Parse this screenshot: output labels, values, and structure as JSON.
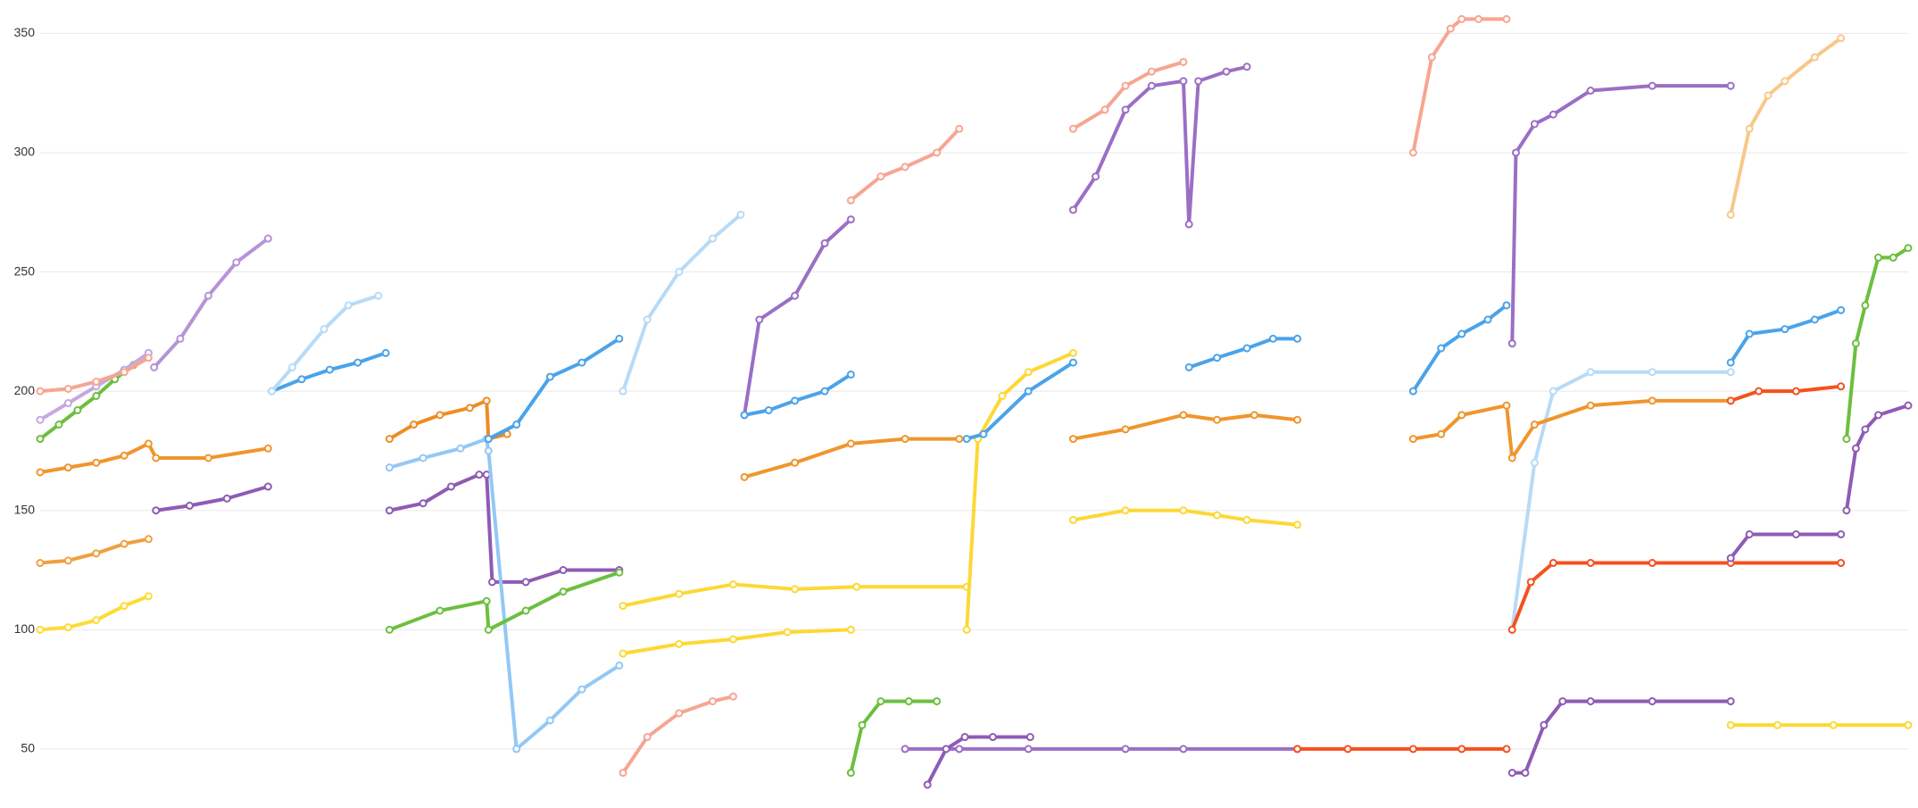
{
  "chart_data": {
    "type": "line",
    "ylim": [
      29,
      364
    ],
    "yticks": [
      50,
      100,
      150,
      200,
      250,
      300,
      350
    ],
    "grid": true,
    "xlim": [
      0,
      100
    ],
    "series": [
      {
        "color": "#6cbf3f",
        "x": [
          0,
          1,
          2,
          3,
          4,
          5,
          5.8
        ],
        "values": [
          180,
          186,
          192,
          198,
          205,
          211,
          216
        ]
      },
      {
        "color": "#c5a8e0",
        "x": [
          0,
          1.5,
          3,
          4.5,
          5.8
        ],
        "values": [
          188,
          195,
          202,
          209,
          216
        ]
      },
      {
        "color": "#f7a591",
        "x": [
          0,
          1.5,
          3,
          4.5,
          5.8
        ],
        "values": [
          200,
          201,
          204,
          208,
          214
        ]
      },
      {
        "color": "#f0952c",
        "x": [
          0,
          1.5,
          3,
          4.5,
          5.8,
          6.2,
          9,
          12.2
        ],
        "values": [
          166,
          168,
          170,
          173,
          178,
          172,
          172,
          176
        ]
      },
      {
        "color": "#f0a040",
        "x": [
          0,
          1.5,
          3,
          4.5,
          5.8
        ],
        "values": [
          128,
          129,
          132,
          136,
          138
        ]
      },
      {
        "color": "#fddc34",
        "x": [
          0,
          1.5,
          3,
          4.5,
          5.8
        ],
        "values": [
          100,
          101,
          104,
          110,
          114
        ]
      },
      {
        "color": "#b594d6",
        "x": [
          6.1,
          7.5,
          9,
          10.5,
          12.2
        ],
        "values": [
          210,
          222,
          240,
          254,
          264
        ]
      },
      {
        "color": "#4aa3ea",
        "x": [
          12.4,
          14,
          15.5,
          17,
          18.5
        ],
        "values": [
          200,
          205,
          209,
          212,
          216
        ]
      },
      {
        "color": "#b7dbf7",
        "x": [
          12.4,
          13.5,
          15.2,
          16.5,
          18.1
        ],
        "values": [
          200,
          210,
          226,
          236,
          240
        ]
      },
      {
        "color": "#8e5bb5",
        "x": [
          6.2,
          8,
          10,
          12.2
        ],
        "values": [
          150,
          152,
          155,
          160
        ]
      },
      {
        "color": "#ee8c22",
        "x": [
          18.7,
          20,
          21.4,
          23,
          23.9,
          24.0,
          25
        ],
        "values": [
          180,
          186,
          190,
          193,
          196,
          180,
          182
        ]
      },
      {
        "color": "#8e5bb5",
        "x": [
          18.7,
          20.5,
          22,
          23.5,
          23.9,
          24.2,
          26,
          28,
          31
        ],
        "values": [
          150,
          153,
          160,
          165,
          165,
          120,
          120,
          125,
          125
        ]
      },
      {
        "color": "#93c8f5",
        "x": [
          18.7,
          20.5,
          22.5,
          23.9,
          24.0,
          25.5,
          27.3,
          29,
          31
        ],
        "values": [
          168,
          172,
          176,
          180,
          175,
          50,
          62,
          75,
          85
        ]
      },
      {
        "color": "#4aa3ea",
        "x": [
          24,
          25.5,
          27.3,
          29,
          31
        ],
        "values": [
          180,
          186,
          206,
          212,
          222
        ]
      },
      {
        "color": "#6cbf3f",
        "x": [
          18.7,
          21.4,
          23.9,
          24,
          26,
          28,
          31
        ],
        "values": [
          100,
          108,
          112,
          100,
          108,
          116,
          124
        ]
      },
      {
        "color": "#b7dbf7",
        "x": [
          31.2,
          32.5,
          34.2,
          36,
          37.5
        ],
        "values": [
          200,
          230,
          250,
          264,
          274
        ]
      },
      {
        "color": "#9b6fc5",
        "x": [
          37.7,
          38.5,
          40.4,
          42,
          43.4
        ],
        "values": [
          190,
          230,
          240,
          262,
          272
        ]
      },
      {
        "color": "#f7a591",
        "x": [
          43.4,
          45,
          46.3,
          48,
          49.2
        ],
        "values": [
          280,
          290,
          294,
          300,
          310
        ]
      },
      {
        "color": "#4aa3ea",
        "x": [
          37.7,
          39,
          40.4,
          42,
          43.4
        ],
        "values": [
          190,
          192,
          196,
          200,
          207
        ]
      },
      {
        "color": "#f0952c",
        "x": [
          37.7,
          40.4,
          43.4,
          46.3,
          49.2
        ],
        "values": [
          164,
          170,
          178,
          180,
          180
        ]
      },
      {
        "color": "#fdd835",
        "x": [
          31.2,
          34.2,
          37.1,
          40.4,
          43.7,
          49.6
        ],
        "values": [
          110,
          115,
          119,
          117,
          118,
          118
        ]
      },
      {
        "color": "#fdd835",
        "x": [
          49.6,
          50.2,
          51.5,
          52.9,
          55.3
        ],
        "values": [
          100,
          180,
          198,
          208,
          216
        ]
      },
      {
        "color": "#4aa3ea",
        "x": [
          49.6,
          50.5,
          52.9,
          55.3
        ],
        "values": [
          180,
          182,
          200,
          212
        ]
      },
      {
        "color": "#f7a591",
        "x": [
          55.3,
          57,
          58.1,
          59.5,
          61.2
        ],
        "values": [
          310,
          318,
          328,
          334,
          338
        ]
      },
      {
        "color": "#9b6fc5",
        "x": [
          55.3,
          56.5,
          58.1,
          59.5,
          61.2,
          61.5,
          62,
          63.5,
          64.6
        ],
        "values": [
          276,
          290,
          318,
          328,
          330,
          270,
          330,
          334,
          336
        ]
      },
      {
        "color": "#f0952c",
        "x": [
          55.3,
          58.1,
          61.2,
          63,
          65,
          67.3
        ],
        "values": [
          180,
          184,
          190,
          188,
          190,
          188
        ]
      },
      {
        "color": "#4aa3ea",
        "x": [
          61.5,
          63,
          64.6,
          66,
          67.3
        ],
        "values": [
          210,
          214,
          218,
          222,
          222
        ]
      },
      {
        "color": "#fdd835",
        "x": [
          55.3,
          58.1,
          61.2,
          63,
          64.6,
          67.3
        ],
        "values": [
          146,
          150,
          150,
          148,
          146,
          144
        ]
      },
      {
        "color": "#f7a591",
        "x": [
          73.5,
          74.5,
          75.5,
          76.1,
          77,
          78.5
        ],
        "values": [
          300,
          340,
          352,
          356,
          356,
          356
        ]
      },
      {
        "color": "#9b6fc5",
        "x": [
          78.8,
          79,
          80,
          81,
          83,
          86.3,
          90.5
        ],
        "values": [
          220,
          300,
          312,
          316,
          326,
          328,
          328
        ]
      },
      {
        "color": "#4aa3ea",
        "x": [
          73.5,
          75,
          76.1,
          77.5,
          78.5
        ],
        "values": [
          200,
          218,
          224,
          230,
          236
        ]
      },
      {
        "color": "#b7dbf7",
        "x": [
          78.8,
          80,
          81,
          83,
          86.3,
          90.5
        ],
        "values": [
          100,
          170,
          200,
          208,
          208,
          208
        ]
      },
      {
        "color": "#f0952c",
        "x": [
          73.5,
          75,
          76.1,
          78.5,
          78.8,
          80,
          83,
          86.3,
          90.5
        ],
        "values": [
          180,
          182,
          190,
          194,
          172,
          186,
          194,
          196,
          196
        ]
      },
      {
        "color": "#f4511e",
        "x": [
          78.8,
          79.8,
          81,
          83,
          86.3,
          90.5,
          96.4
        ],
        "values": [
          100,
          120,
          128,
          128,
          128,
          128,
          128
        ]
      },
      {
        "color": "#f8c889",
        "x": [
          90.5,
          91.5,
          92.5,
          93.4,
          95,
          96.4
        ],
        "values": [
          274,
          310,
          324,
          330,
          340,
          348
        ]
      },
      {
        "color": "#4aa3ea",
        "x": [
          90.5,
          91.5,
          93.4,
          95,
          96.4
        ],
        "values": [
          212,
          224,
          226,
          230,
          234
        ]
      },
      {
        "color": "#f4511e",
        "x": [
          90.5,
          92,
          94,
          96.4
        ],
        "values": [
          196,
          200,
          200,
          202
        ]
      },
      {
        "color": "#6cbf3f",
        "x": [
          96.7,
          97.2,
          97.7,
          98.4,
          99.2,
          100
        ],
        "values": [
          180,
          220,
          236,
          256,
          256,
          260
        ]
      },
      {
        "color": "#8e5bb5",
        "x": [
          96.7,
          97.2,
          97.7,
          98.4,
          100
        ],
        "values": [
          150,
          176,
          184,
          190,
          194
        ]
      },
      {
        "color": "#9b6fc5",
        "x": [
          46.3,
          49.2,
          52.9,
          58.1,
          61.2,
          67.3
        ],
        "values": [
          50,
          50,
          50,
          50,
          50,
          50
        ]
      },
      {
        "color": "#f4511e",
        "x": [
          67.3,
          70,
          73.5,
          76.1,
          78.5
        ],
        "values": [
          50,
          50,
          50,
          50,
          50
        ]
      },
      {
        "color": "#8e5bb5",
        "x": [
          78.8,
          79.5,
          80.5,
          81.5,
          83,
          86.3,
          90.5
        ],
        "values": [
          40,
          40,
          60,
          70,
          70,
          70,
          70
        ]
      },
      {
        "color": "#6cbf3f",
        "x": [
          43.4,
          44,
          45,
          46.5,
          48
        ],
        "values": [
          40,
          60,
          70,
          70,
          70
        ]
      },
      {
        "color": "#8e5bb5",
        "x": [
          47.5,
          48.5,
          49.5,
          51,
          53
        ],
        "values": [
          35,
          50,
          55,
          55,
          55
        ]
      },
      {
        "color": "#fdd835",
        "x": [
          31.2,
          34.2,
          37.1,
          40,
          43.4
        ],
        "values": [
          90,
          94,
          96,
          99,
          100
        ]
      },
      {
        "color": "#f7a591",
        "x": [
          31.2,
          32.5,
          34.2,
          36,
          37.1
        ],
        "values": [
          40,
          55,
          65,
          70,
          72
        ]
      },
      {
        "color": "#fdd835",
        "x": [
          90.5,
          93,
          96,
          100
        ],
        "values": [
          60,
          60,
          60,
          60
        ]
      },
      {
        "color": "#8e5bb5",
        "x": [
          90.5,
          91.5,
          94,
          96.4
        ],
        "values": [
          130,
          140,
          140,
          140
        ]
      }
    ]
  }
}
